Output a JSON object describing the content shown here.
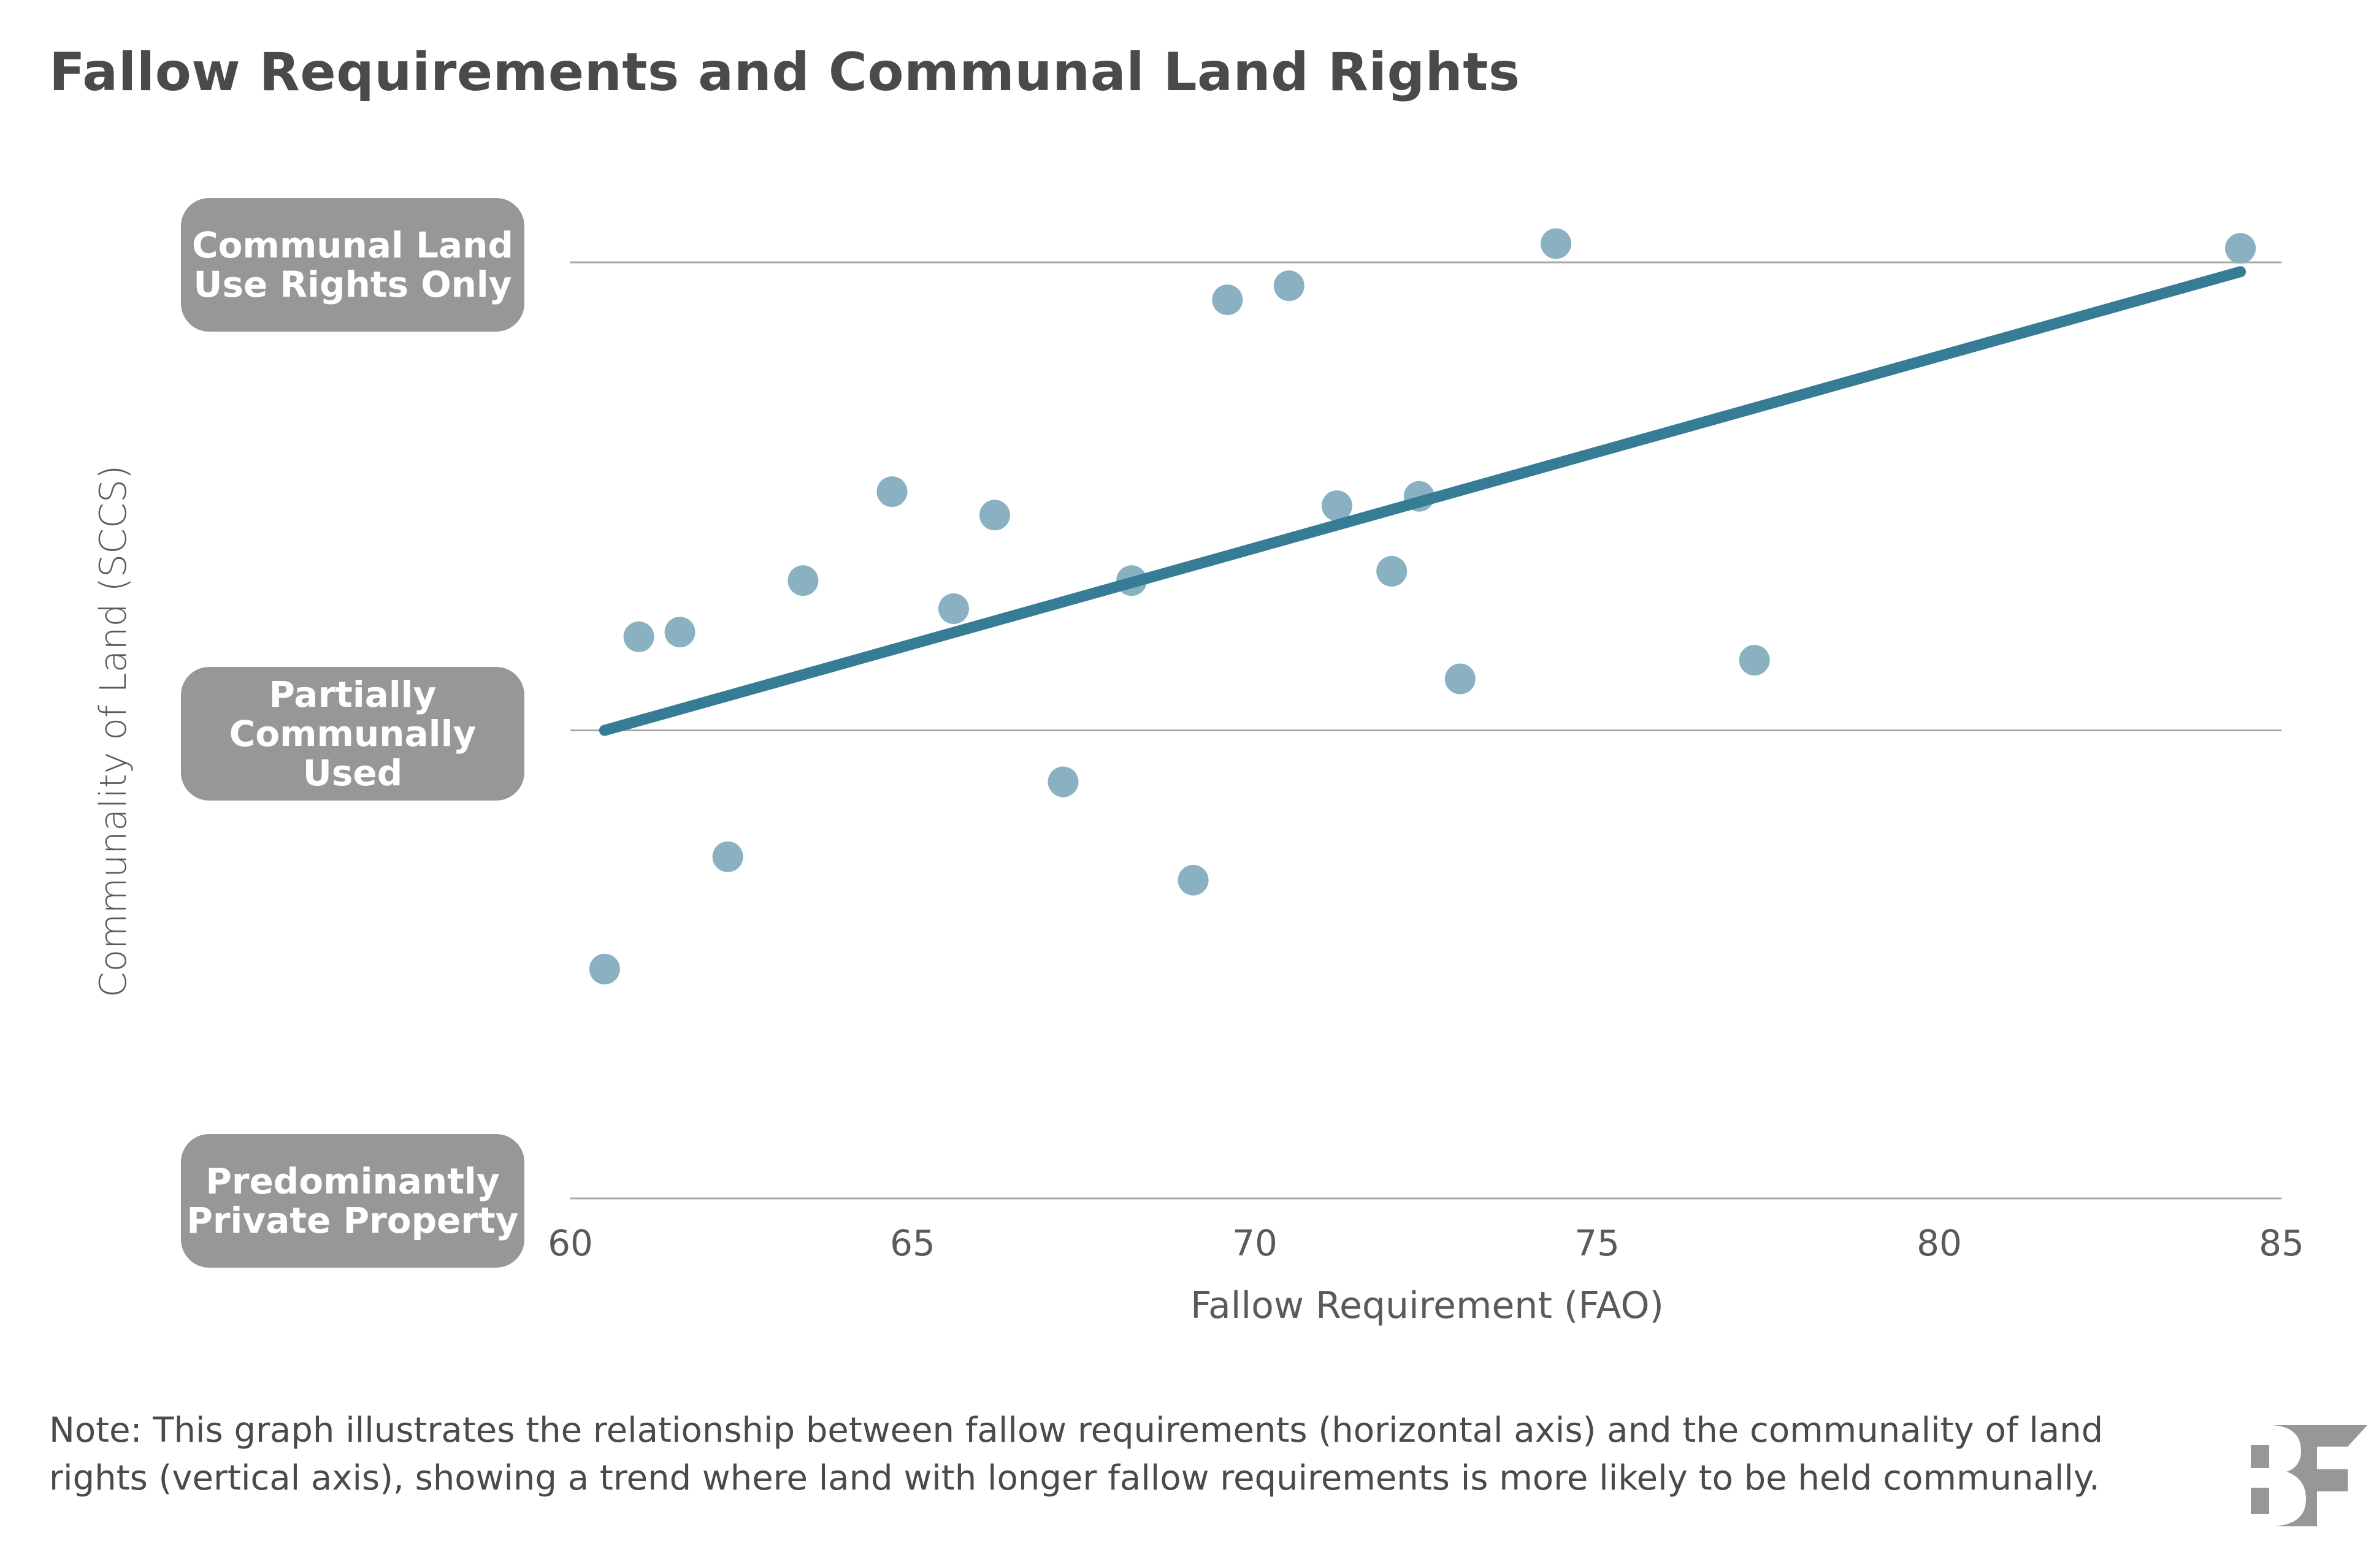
{
  "title": "Fallow Requirements and Communal Land Rights",
  "chart_data": {
    "type": "scatter",
    "title": "Fallow Requirements and Communal Land Rights",
    "xlabel": "Fallow Requirement (FAO)",
    "ylabel": "Communality of Land (SCCS)",
    "xlim": [
      60,
      85
    ],
    "ylim": [
      1,
      3
    ],
    "x_ticks": [
      "60",
      "65",
      "70",
      "75",
      "80",
      "85"
    ],
    "x_tick_values": [
      60,
      65,
      70,
      75,
      80,
      85
    ],
    "y_levels": [
      {
        "value": 3,
        "label_lines": [
          "Communal Land",
          "Use Rights Only"
        ]
      },
      {
        "value": 2,
        "label_lines": [
          "Partially",
          "Communally Used"
        ]
      },
      {
        "value": 1,
        "label_lines": [
          "Predominantly",
          "Private Property"
        ]
      }
    ],
    "grid": true,
    "points": [
      {
        "x": 60.5,
        "y": 1.49
      },
      {
        "x": 61.0,
        "y": 2.2
      },
      {
        "x": 61.6,
        "y": 2.21
      },
      {
        "x": 62.3,
        "y": 1.73
      },
      {
        "x": 63.4,
        "y": 2.32
      },
      {
        "x": 64.7,
        "y": 2.51
      },
      {
        "x": 65.6,
        "y": 2.26
      },
      {
        "x": 66.2,
        "y": 2.46
      },
      {
        "x": 67.2,
        "y": 1.89
      },
      {
        "x": 68.2,
        "y": 2.32
      },
      {
        "x": 69.1,
        "y": 1.68
      },
      {
        "x": 69.6,
        "y": 2.92
      },
      {
        "x": 70.5,
        "y": 2.95
      },
      {
        "x": 71.2,
        "y": 2.48
      },
      {
        "x": 72.0,
        "y": 2.34
      },
      {
        "x": 72.4,
        "y": 2.5
      },
      {
        "x": 73.0,
        "y": 2.11
      },
      {
        "x": 74.4,
        "y": 3.04
      },
      {
        "x": 77.3,
        "y": 2.15
      },
      {
        "x": 84.4,
        "y": 3.03
      }
    ],
    "trendline": {
      "x": [
        60.5,
        84.4
      ],
      "y": [
        2.0,
        2.98
      ]
    },
    "colors": {
      "points": "#89B1C1",
      "trendline": "#367C95",
      "grid": "#a8a8a8",
      "level_box": "#979797"
    }
  },
  "note": {
    "lines": [
      "Note: This graph illustrates the relationship between fallow requirements (horizontal axis) and the communality of land",
      "rights (vertical axis), showing a trend where land with longer fallow requirements is more likely to be held communally."
    ]
  },
  "logo": {
    "name": "BF",
    "color": "#979797"
  }
}
